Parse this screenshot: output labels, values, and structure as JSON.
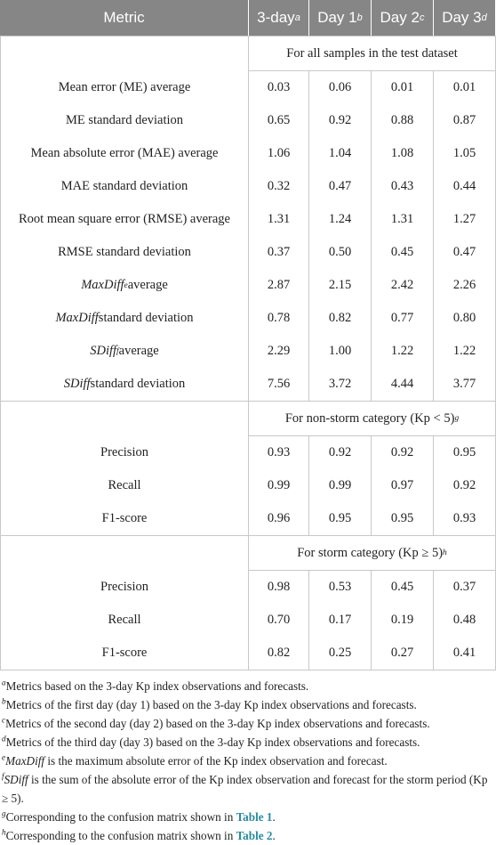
{
  "table": {
    "header": [
      [
        {
          "t": "Metric"
        }
      ],
      [
        {
          "t": "3-day"
        },
        {
          "t": "a",
          "sup": true
        }
      ],
      [
        {
          "t": "Day 1"
        },
        {
          "t": "b",
          "sup": true
        }
      ],
      [
        {
          "t": "Day 2"
        },
        {
          "t": "c",
          "sup": true
        }
      ],
      [
        {
          "t": "Day 3"
        },
        {
          "t": "d",
          "sup": true
        }
      ]
    ],
    "sections": [
      {
        "title": [
          {
            "t": "For all samples in the test dataset"
          }
        ],
        "rows": [
          {
            "label": [
              {
                "t": "Mean error (ME) average"
              }
            ],
            "values": [
              "0.03",
              "0.06",
              "0.01",
              "0.01"
            ]
          },
          {
            "label": [
              {
                "t": "ME standard deviation"
              }
            ],
            "values": [
              "0.65",
              "0.92",
              "0.88",
              "0.87"
            ]
          },
          {
            "label": [
              {
                "t": "Mean absolute error (MAE) average"
              }
            ],
            "values": [
              "1.06",
              "1.04",
              "1.08",
              "1.05"
            ]
          },
          {
            "label": [
              {
                "t": "MAE standard deviation"
              }
            ],
            "values": [
              "0.32",
              "0.47",
              "0.43",
              "0.44"
            ]
          },
          {
            "label": [
              {
                "t": "Root mean square error (RMSE) average"
              }
            ],
            "values": [
              "1.31",
              "1.24",
              "1.31",
              "1.27"
            ]
          },
          {
            "label": [
              {
                "t": "RMSE standard deviation"
              }
            ],
            "values": [
              "0.37",
              "0.50",
              "0.45",
              "0.47"
            ]
          },
          {
            "label": [
              {
                "t": "MaxDiff",
                "i": true
              },
              {
                "t": "e",
                "sup": true
              },
              {
                "t": " average"
              }
            ],
            "values": [
              "2.87",
              "2.15",
              "2.42",
              "2.26"
            ]
          },
          {
            "label": [
              {
                "t": "MaxDiff",
                "i": true
              },
              {
                "t": " standard deviation"
              }
            ],
            "values": [
              "0.78",
              "0.82",
              "0.77",
              "0.80"
            ]
          },
          {
            "label": [
              {
                "t": "SDiff",
                "i": true
              },
              {
                "t": "f",
                "sup": true
              },
              {
                "t": " average"
              }
            ],
            "values": [
              "2.29",
              "1.00",
              "1.22",
              "1.22"
            ]
          },
          {
            "label": [
              {
                "t": "SDiff",
                "i": true
              },
              {
                "t": " standard deviation"
              }
            ],
            "values": [
              "7.56",
              "3.72",
              "4.44",
              "3.77"
            ]
          }
        ]
      },
      {
        "title": [
          {
            "t": "For non-storm category (Kp < 5)"
          },
          {
            "t": "g",
            "sup": true
          }
        ],
        "rows": [
          {
            "label": [
              {
                "t": "Precision"
              }
            ],
            "values": [
              "0.93",
              "0.92",
              "0.92",
              "0.95"
            ]
          },
          {
            "label": [
              {
                "t": "Recall"
              }
            ],
            "values": [
              "0.99",
              "0.99",
              "0.97",
              "0.92"
            ]
          },
          {
            "label": [
              {
                "t": "F1-score"
              }
            ],
            "values": [
              "0.96",
              "0.95",
              "0.95",
              "0.93"
            ]
          }
        ]
      },
      {
        "title": [
          {
            "t": "For storm category (Kp ≥ 5)"
          },
          {
            "t": "h",
            "sup": true
          }
        ],
        "rows": [
          {
            "label": [
              {
                "t": "Precision"
              }
            ],
            "values": [
              "0.98",
              "0.53",
              "0.45",
              "0.37"
            ]
          },
          {
            "label": [
              {
                "t": "Recall"
              }
            ],
            "values": [
              "0.70",
              "0.17",
              "0.19",
              "0.48"
            ]
          },
          {
            "label": [
              {
                "t": "F1-score"
              }
            ],
            "values": [
              "0.82",
              "0.25",
              "0.27",
              "0.41"
            ]
          }
        ]
      }
    ]
  },
  "footnotes": [
    [
      {
        "t": "a",
        "sup": true
      },
      {
        "t": "Metrics based on the 3-day Kp index observations and forecasts."
      }
    ],
    [
      {
        "t": "b",
        "sup": true
      },
      {
        "t": "Metrics of the first day (day 1) based on the 3-day Kp index observations and forecasts."
      }
    ],
    [
      {
        "t": "c",
        "sup": true
      },
      {
        "t": "Metrics of the second day (day 2) based on the 3-day Kp index observations and forecasts."
      }
    ],
    [
      {
        "t": "d",
        "sup": true
      },
      {
        "t": "Metrics of the third day (day 3) based on the 3-day Kp index observations and forecasts."
      }
    ],
    [
      {
        "t": "e",
        "sup": true
      },
      {
        "t": "MaxDiff",
        "i": true
      },
      {
        "t": " is the maximum absolute error of the Kp index observation and forecast."
      }
    ],
    [
      {
        "t": "f",
        "sup": true
      },
      {
        "t": "SDiff",
        "i": true
      },
      {
        "t": " is the sum of the absolute error of the Kp index observation and forecast for the storm period (Kp ≥ 5)."
      }
    ],
    [
      {
        "t": "g",
        "sup": true
      },
      {
        "t": "Corresponding to the confusion matrix shown in "
      },
      {
        "t": "Table 1",
        "link": true
      },
      {
        "t": "."
      }
    ],
    [
      {
        "t": "h",
        "sup": true
      },
      {
        "t": "Corresponding to the confusion matrix shown in "
      },
      {
        "t": "Table 2",
        "link": true
      },
      {
        "t": "."
      }
    ]
  ]
}
